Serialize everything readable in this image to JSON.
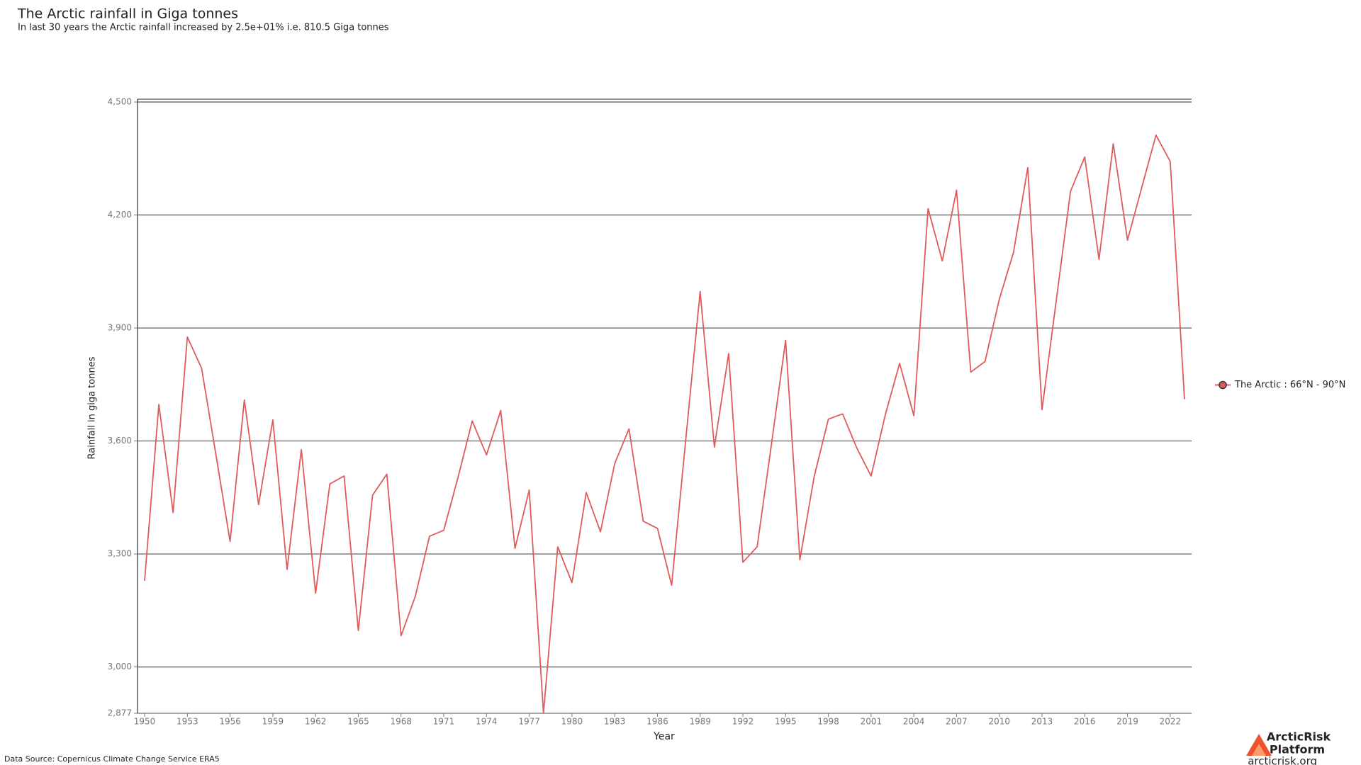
{
  "chart_data": {
    "type": "line",
    "title": "The Arctic rainfall in Giga tonnes",
    "subtitle": "In last 30 years the Arctic rainfall increased by 2.5e+01% i.e. 810.5 Giga tonnes",
    "x_label": "Year",
    "y_label": "Rainfall in giga tonnes",
    "x": [
      1950,
      1951,
      1952,
      1953,
      1954,
      1955,
      1956,
      1957,
      1958,
      1959,
      1960,
      1961,
      1962,
      1963,
      1964,
      1965,
      1966,
      1967,
      1968,
      1969,
      1970,
      1971,
      1972,
      1973,
      1974,
      1975,
      1976,
      1977,
      1978,
      1979,
      1980,
      1981,
      1982,
      1983,
      1984,
      1985,
      1986,
      1987,
      1988,
      1989,
      1990,
      1991,
      1992,
      1993,
      1994,
      1995,
      1996,
      1997,
      1998,
      1999,
      2000,
      2001,
      2002,
      2003,
      2004,
      2005,
      2006,
      2007,
      2008,
      2009,
      2010,
      2011,
      2012,
      2013,
      2014,
      2015,
      2016,
      2017,
      2018,
      2019,
      2020,
      2021,
      2022,
      2023
    ],
    "series": [
      {
        "name": "The Arctic : 66°N - 90°N",
        "color": "#e05a5a",
        "values": [
          3229,
          3697,
          3410,
          3876,
          3793,
          3565,
          3333,
          3709,
          3431,
          3656,
          3259,
          3577,
          3196,
          3486,
          3507,
          3097,
          3456,
          3512,
          3083,
          3187,
          3347,
          3363,
          3503,
          3653,
          3563,
          3681,
          3315,
          3470,
          2877,
          3319,
          3224,
          3463,
          3359,
          3540,
          3632,
          3387,
          3368,
          3217,
          3607,
          3997,
          3584,
          3832,
          3278,
          3319,
          3590,
          3867,
          3285,
          3505,
          3658,
          3672,
          3581,
          3507,
          3670,
          3806,
          3667,
          4217,
          4078,
          4266,
          3783,
          3811,
          3976,
          4101,
          4326,
          3683,
          3973,
          4263,
          4354,
          4082,
          4389,
          4133,
          4273,
          4412,
          4342,
          3711
        ]
      }
    ],
    "xlim": [
      1949.5,
      2023.5
    ],
    "xticks": [
      1950,
      1953,
      1956,
      1959,
      1962,
      1965,
      1968,
      1971,
      1974,
      1977,
      1980,
      1983,
      1986,
      1989,
      1992,
      1995,
      1998,
      2001,
      2004,
      2007,
      2010,
      2013,
      2016,
      2019,
      2022
    ],
    "ylim": [
      2877,
      4500
    ],
    "yticks": [
      {
        "value": 2877,
        "label": "2,877"
      },
      {
        "value": 3000,
        "label": "3,000"
      },
      {
        "value": 3300,
        "label": "3,300"
      },
      {
        "value": 3600,
        "label": "3,600"
      },
      {
        "value": 3900,
        "label": "3,900"
      },
      {
        "value": 4200,
        "label": "4,200"
      },
      {
        "value": 4500,
        "label": "4,500"
      }
    ],
    "grid": true,
    "grid_color": "#555555",
    "legend_position": "right"
  },
  "footer": {
    "source": "Data Source: Copernicus Climate Change Service ERA5",
    "logo_line1": "ArcticRisk",
    "logo_line2": "Platform",
    "logo_url": "arcticrisk.org"
  }
}
